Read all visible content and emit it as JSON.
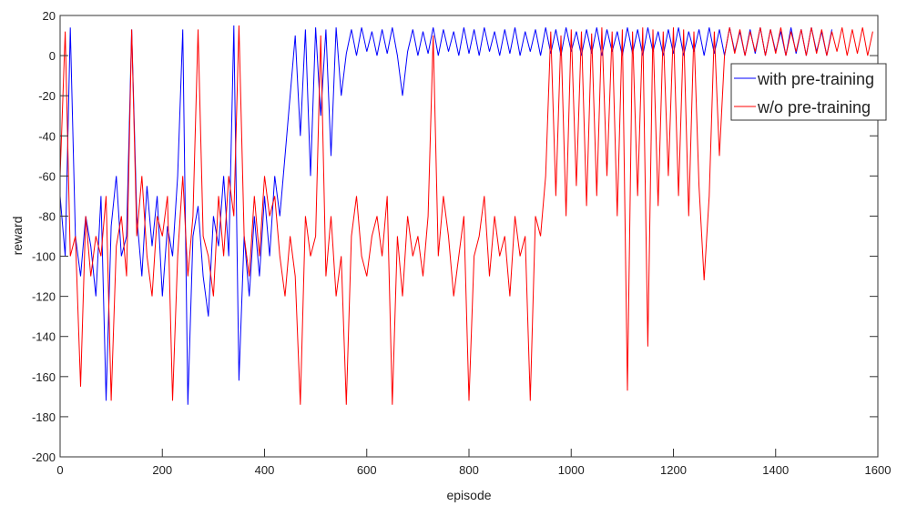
{
  "chart_data": {
    "type": "line",
    "title": "",
    "xlabel": "episode",
    "ylabel": "reward",
    "xlim": [
      0,
      1600
    ],
    "ylim": [
      -200,
      20
    ],
    "xticks": [
      0,
      200,
      400,
      600,
      800,
      1000,
      1200,
      1400,
      1600
    ],
    "yticks": [
      20,
      0,
      -20,
      -40,
      -60,
      -80,
      -100,
      -120,
      -140,
      -160,
      -180,
      -200
    ],
    "grid": false,
    "legend_placement": "top-right",
    "x_step": 10,
    "series": [
      {
        "name": "with pre-training",
        "color": "#0000ff",
        "values": [
          -70,
          -100,
          14,
          -90,
          -110,
          -80,
          -95,
          -120,
          -70,
          -172,
          -85,
          -60,
          -100,
          -90,
          13,
          -80,
          -110,
          -65,
          -95,
          -70,
          -120,
          -85,
          -100,
          -60,
          13,
          -174,
          -90,
          -75,
          -110,
          -130,
          -80,
          -95,
          -60,
          -100,
          15,
          -162,
          -90,
          -120,
          -80,
          -110,
          -70,
          -100,
          -60,
          -80,
          -50,
          -20,
          10,
          -40,
          13,
          -60,
          14,
          -30,
          13,
          -50,
          14,
          -20,
          1,
          13,
          0,
          14,
          2,
          12,
          0,
          13,
          1,
          14,
          0,
          -20,
          2,
          13,
          0,
          12,
          1,
          14,
          0,
          13,
          2,
          12,
          0,
          14,
          1,
          13,
          0,
          14,
          2,
          12,
          0,
          13,
          1,
          14,
          0,
          12,
          2,
          13,
          0,
          14,
          1,
          13,
          0,
          14,
          2,
          12,
          0,
          13,
          1,
          14,
          0,
          13,
          2,
          12,
          0,
          14,
          1,
          13,
          0,
          14,
          2,
          12,
          0,
          13,
          1,
          14,
          0,
          12,
          2,
          13,
          0,
          14,
          1,
          13,
          0,
          14,
          2,
          12,
          0,
          13,
          1,
          14,
          0,
          13,
          2,
          12,
          0,
          14,
          1,
          13,
          0,
          14,
          2,
          12,
          0,
          13
        ]
      },
      {
        "name": "w/o pre-training",
        "color": "#ff0000",
        "values": [
          -60,
          12,
          -100,
          -90,
          -165,
          -80,
          -110,
          -90,
          -100,
          -70,
          -172,
          -95,
          -80,
          -110,
          13,
          -90,
          -60,
          -100,
          -120,
          -80,
          -90,
          -70,
          -172,
          -100,
          -60,
          -110,
          -80,
          13,
          -90,
          -100,
          -120,
          -70,
          -100,
          -60,
          -80,
          15,
          -90,
          -110,
          -70,
          -100,
          -60,
          -80,
          -70,
          -100,
          -120,
          -90,
          -110,
          -174,
          -80,
          -100,
          -90,
          10,
          -110,
          -80,
          -120,
          -100,
          -174,
          -90,
          -70,
          -100,
          -110,
          -90,
          -80,
          -100,
          -70,
          -174,
          -90,
          -120,
          -80,
          -100,
          -90,
          -110,
          -80,
          10,
          -100,
          -70,
          -90,
          -120,
          -100,
          -80,
          -172,
          -100,
          -90,
          -70,
          -110,
          -80,
          -100,
          -90,
          -120,
          -80,
          -100,
          -90,
          -172,
          -80,
          -90,
          -60,
          12,
          -70,
          10,
          -80,
          13,
          -65,
          12,
          -75,
          11,
          -70,
          14,
          -60,
          12,
          -80,
          13,
          -167,
          12,
          -70,
          14,
          -145,
          13,
          -75,
          12,
          -60,
          14,
          -70,
          13,
          -80,
          12,
          -65,
          -112,
          -70,
          12,
          -50,
          0,
          14,
          1,
          13,
          0,
          12,
          2,
          14,
          0,
          13,
          1,
          14,
          0,
          12,
          2,
          13,
          0,
          14,
          1,
          13,
          0,
          12,
          2,
          14,
          0,
          13,
          1,
          14,
          0,
          12
        ]
      }
    ]
  }
}
